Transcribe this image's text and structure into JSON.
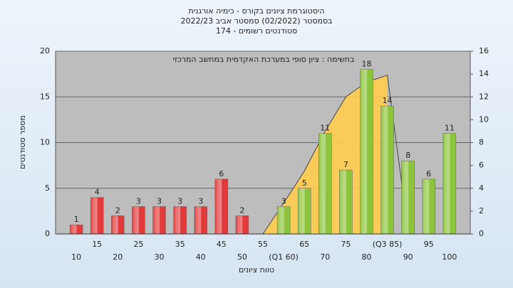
{
  "chart_data": {
    "type": "bar",
    "title": "היסטוגרמת ציונים בקורס - כימיה אורגנית",
    "subtitle": [
      "בסמסטר  (02/2022)  סמסטר אביב 2022/23",
      "סטודנטים רשומים - 174"
    ],
    "annotation": "בחשימה : ציון סופי במערכת האקדמית במחשב המרכזי",
    "x_label": "טווח ציונים",
    "y_label": "מספר סטודנטים",
    "categories": [
      "10",
      "15",
      "20",
      "25",
      "30",
      "35",
      "40",
      "45",
      "50",
      "55",
      "(Q1 60)",
      "65",
      "70",
      "75",
      "80",
      "(Q3 85)",
      "90",
      "95",
      "100"
    ],
    "series": [
      {
        "values": [
          1,
          4,
          2,
          3,
          3,
          3,
          3,
          6,
          2,
          null,
          3,
          5,
          11,
          7,
          18,
          14,
          8,
          6,
          11
        ],
        "colors": [
          "#e23a3a",
          "#e23a3a",
          "#e23a3a",
          "#e23a3a",
          "#e23a3a",
          "#e23a3a",
          "#e23a3a",
          "#e23a3a",
          "#e23a3a",
          null,
          "#8cc43c",
          "#8cc43c",
          "#8cc43c",
          "#8cc43c",
          "#8cc43c",
          "#8cc43c",
          "#8cc43c",
          "#8cc43c",
          "#8cc43c"
        ]
      },
      {
        "type": "area",
        "axis": "y2",
        "color": "#ffcc4d",
        "line_color": "#444444",
        "values": [
          null,
          null,
          null,
          null,
          null,
          null,
          null,
          null,
          null,
          0,
          2.7,
          5.5,
          9,
          12,
          13.3,
          13.9,
          0.3,
          null,
          null
        ]
      }
    ],
    "ylim": [
      0,
      20
    ],
    "yticks": [
      0,
      5,
      10,
      15,
      20
    ],
    "y2lim": [
      0,
      16
    ],
    "y2ticks": [
      0,
      2,
      4,
      6,
      8,
      10,
      12,
      14,
      16
    ],
    "grid": true
  }
}
